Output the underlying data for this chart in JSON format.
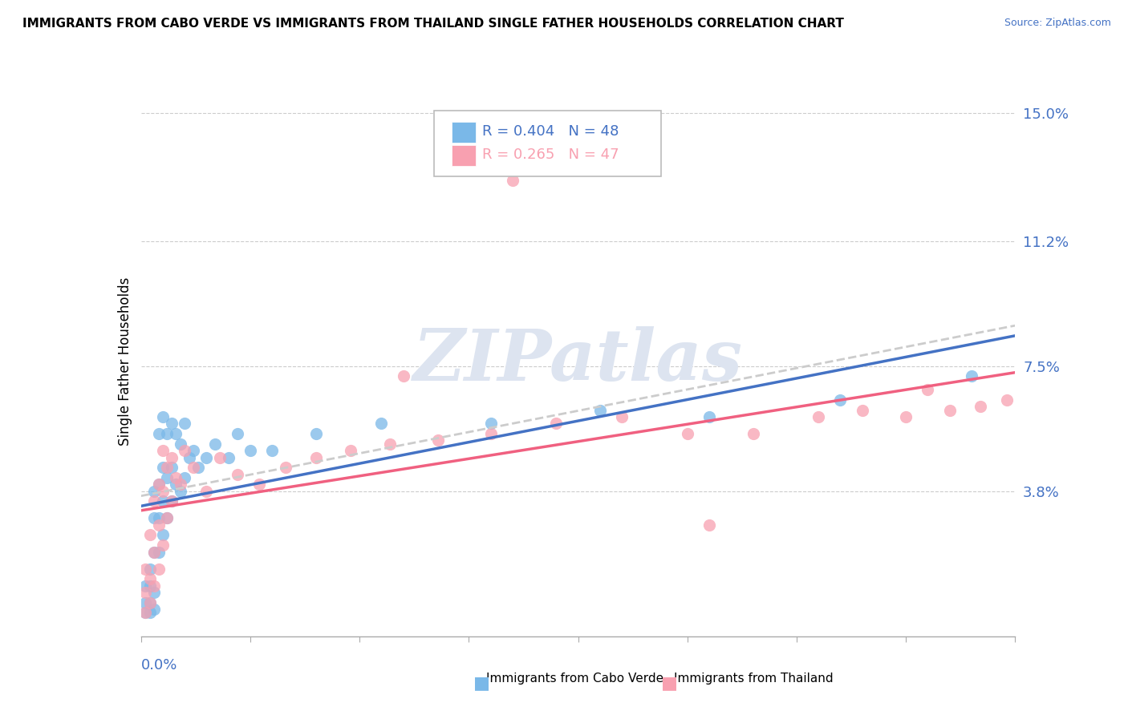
{
  "title": "IMMIGRANTS FROM CABO VERDE VS IMMIGRANTS FROM THAILAND SINGLE FATHER HOUSEHOLDS CORRELATION CHART",
  "source": "Source: ZipAtlas.com",
  "ylabel": "Single Father Households",
  "ytick_vals": [
    0.038,
    0.075,
    0.112,
    0.15
  ],
  "ytick_labels": [
    "3.8%",
    "7.5%",
    "11.2%",
    "15.0%"
  ],
  "xlim": [
    0.0,
    0.2
  ],
  "ylim": [
    -0.005,
    0.158
  ],
  "cabo_verde_R": 0.404,
  "cabo_verde_N": 48,
  "thailand_R": 0.265,
  "thailand_N": 47,
  "cabo_verde_color": "#7ab8e8",
  "thailand_color": "#f8a0b0",
  "cabo_verde_line_color": "#4472c4",
  "thailand_line_color": "#f06080",
  "cabo_verde_dash_color": "#cccccc",
  "watermark_color": "#dde4f0",
  "cabo_verde_x": [
    0.001,
    0.001,
    0.001,
    0.002,
    0.002,
    0.002,
    0.002,
    0.003,
    0.003,
    0.003,
    0.003,
    0.003,
    0.004,
    0.004,
    0.004,
    0.004,
    0.005,
    0.005,
    0.005,
    0.005,
    0.006,
    0.006,
    0.006,
    0.007,
    0.007,
    0.007,
    0.008,
    0.008,
    0.009,
    0.009,
    0.01,
    0.01,
    0.011,
    0.012,
    0.013,
    0.015,
    0.017,
    0.02,
    0.022,
    0.025,
    0.03,
    0.04,
    0.055,
    0.08,
    0.105,
    0.13,
    0.16,
    0.19
  ],
  "cabo_verde_y": [
    0.002,
    0.005,
    0.01,
    0.002,
    0.005,
    0.01,
    0.015,
    0.003,
    0.008,
    0.02,
    0.03,
    0.038,
    0.02,
    0.03,
    0.04,
    0.055,
    0.025,
    0.035,
    0.045,
    0.06,
    0.03,
    0.042,
    0.055,
    0.035,
    0.045,
    0.058,
    0.04,
    0.055,
    0.038,
    0.052,
    0.042,
    0.058,
    0.048,
    0.05,
    0.045,
    0.048,
    0.052,
    0.048,
    0.055,
    0.05,
    0.05,
    0.055,
    0.058,
    0.058,
    0.062,
    0.06,
    0.065,
    0.072
  ],
  "thailand_x": [
    0.001,
    0.001,
    0.001,
    0.002,
    0.002,
    0.002,
    0.003,
    0.003,
    0.003,
    0.004,
    0.004,
    0.004,
    0.005,
    0.005,
    0.005,
    0.006,
    0.006,
    0.007,
    0.007,
    0.008,
    0.009,
    0.01,
    0.012,
    0.015,
    0.018,
    0.022,
    0.027,
    0.033,
    0.04,
    0.048,
    0.057,
    0.068,
    0.08,
    0.095,
    0.11,
    0.125,
    0.14,
    0.155,
    0.165,
    0.175,
    0.185,
    0.192,
    0.198,
    0.06,
    0.085,
    0.13,
    0.18
  ],
  "thailand_y": [
    0.002,
    0.008,
    0.015,
    0.005,
    0.012,
    0.025,
    0.01,
    0.02,
    0.035,
    0.015,
    0.028,
    0.04,
    0.022,
    0.038,
    0.05,
    0.03,
    0.045,
    0.035,
    0.048,
    0.042,
    0.04,
    0.05,
    0.045,
    0.038,
    0.048,
    0.043,
    0.04,
    0.045,
    0.048,
    0.05,
    0.052,
    0.053,
    0.055,
    0.058,
    0.06,
    0.055,
    0.055,
    0.06,
    0.062,
    0.06,
    0.062,
    0.063,
    0.065,
    0.072,
    0.13,
    0.028,
    0.068
  ]
}
